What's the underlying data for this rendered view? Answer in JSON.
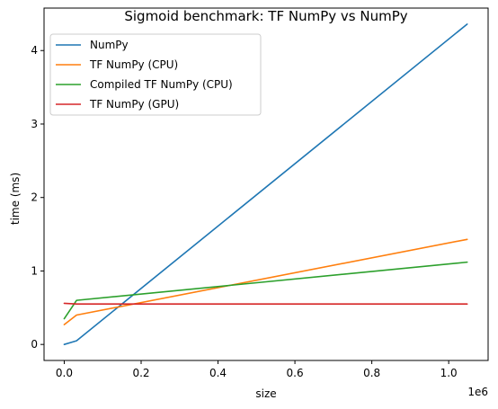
{
  "chart_data": {
    "type": "line",
    "title": "Sigmoid benchmark: TF NumPy vs NumPy",
    "xlabel": "size",
    "ylabel": "time (ms)",
    "x_offset_label": "1e6",
    "xlim": [
      -0.0525,
      1.1025
    ],
    "ylim": [
      -0.218,
      4.578
    ],
    "xticks": [
      0.0,
      0.2,
      0.4,
      0.6,
      0.8,
      1.0
    ],
    "xtick_labels": [
      "0.0",
      "0.2",
      "0.4",
      "0.6",
      "0.8",
      "1.0"
    ],
    "yticks": [
      0,
      1,
      2,
      3,
      4
    ],
    "ytick_labels": [
      "0",
      "1",
      "2",
      "3",
      "4"
    ],
    "grid": false,
    "legend_position": "top-left",
    "series": [
      {
        "name": "NumPy",
        "color": "#1f77b4",
        "x": [
          0.0,
          0.032,
          1.048
        ],
        "y": [
          0.0,
          0.05,
          4.36
        ]
      },
      {
        "name": "TF NumPy (CPU)",
        "color": "#ff7f0e",
        "x": [
          0.0,
          0.032,
          1.048
        ],
        "y": [
          0.27,
          0.4,
          1.43
        ]
      },
      {
        "name": "Compiled TF NumPy (CPU)",
        "color": "#2ca02c",
        "x": [
          0.0,
          0.032,
          1.048
        ],
        "y": [
          0.35,
          0.6,
          1.12
        ]
      },
      {
        "name": "TF NumPy (GPU)",
        "color": "#d62728",
        "x": [
          0.0,
          0.032,
          1.048
        ],
        "y": [
          0.56,
          0.55,
          0.55
        ]
      }
    ]
  }
}
